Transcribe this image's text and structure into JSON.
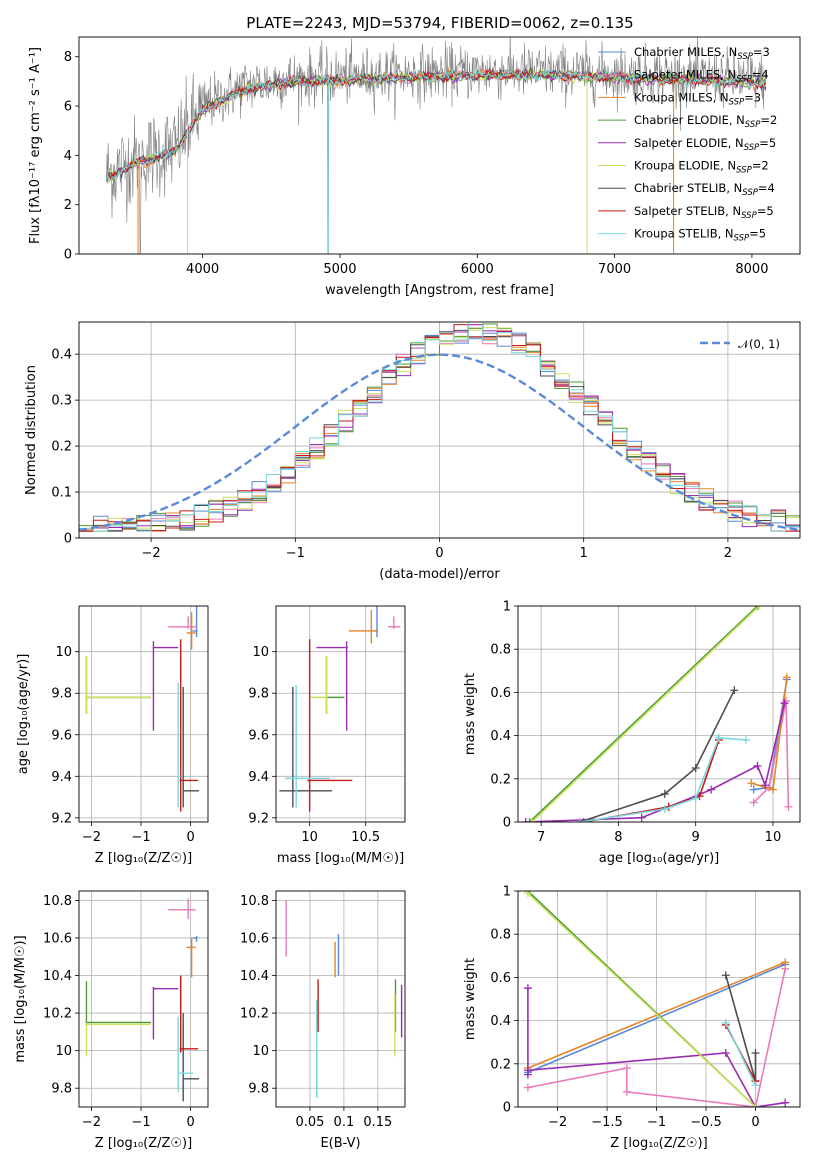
{
  "figure_title": "PLATE=2243, MJD=53794, FIBERID=0062, z=0.135",
  "colors": {
    "Chabrier MILES": "#5b8ad8",
    "Salpeter MILES": "#e87aba",
    "Kroupa MILES": "#e6842a",
    "Chabrier ELODIE": "#4f9a3c",
    "Salpeter ELODIE": "#9a2cb2",
    "Kroupa ELODIE": "#c8e25c",
    "Chabrier STELIB": "#4d4d4d",
    "Salpeter STELIB": "#c41a1a",
    "Kroupa STELIB": "#7ad8de"
  },
  "chart_data": [
    {
      "id": "spectrum",
      "type": "line",
      "title": "PLATE=2243, MJD=53794, FIBERID=0062, z=0.135",
      "xlabel": "wavelength [Angstrom, rest frame]",
      "ylabel": "Flux [fλ10⁻¹⁷ erg cm⁻² s⁻¹ A⁻¹]",
      "xlim": [
        3100,
        8350
      ],
      "ylim": [
        0,
        8.8
      ],
      "xticks": [
        4000,
        5000,
        6000,
        7000,
        8000
      ],
      "yticks": [
        0,
        2,
        4,
        6,
        8
      ],
      "grid": false,
      "legend_position": "top-right",
      "legend": [
        {
          "label": "Chabrier MILES, N",
          "sub": "SSP",
          "tail": "=3",
          "key": "Chabrier MILES"
        },
        {
          "label": "Salpeter MILES, N",
          "sub": "SSP",
          "tail": "=4",
          "key": "Salpeter MILES"
        },
        {
          "label": "Kroupa MILES, N",
          "sub": "SSP",
          "tail": "=3",
          "key": "Kroupa MILES"
        },
        {
          "label": "Chabrier ELODIE, N",
          "sub": "SSP",
          "tail": "=2",
          "key": "Chabrier ELODIE"
        },
        {
          "label": "Salpeter ELODIE, N",
          "sub": "SSP",
          "tail": "=5",
          "key": "Salpeter ELODIE"
        },
        {
          "label": "Kroupa ELODIE, N",
          "sub": "SSP",
          "tail": "=2",
          "key": "Kroupa ELODIE"
        },
        {
          "label": "Chabrier STELIB, N",
          "sub": "SSP",
          "tail": "=4",
          "key": "Chabrier STELIB"
        },
        {
          "label": "Salpeter STELIB, N",
          "sub": "SSP",
          "tail": "=5",
          "key": "Salpeter STELIB"
        },
        {
          "label": "Kroupa STELIB, N",
          "sub": "SSP",
          "tail": "=5",
          "key": "Kroupa STELIB"
        }
      ],
      "data_series": {
        "name": "data",
        "color": "#808080",
        "x_range": [
          3300,
          8100
        ]
      },
      "model_continuum": {
        "x": [
          3300,
          3500,
          3800,
          4000,
          4300,
          4600,
          5000,
          5500,
          6000,
          6500,
          7000,
          7500,
          8000,
          8100
        ],
        "y": [
          3.2,
          3.8,
          4.3,
          6.0,
          6.8,
          7.1,
          7.2,
          7.3,
          7.4,
          7.4,
          7.3,
          7.2,
          7.1,
          7.0
        ]
      }
    },
    {
      "id": "residuals",
      "type": "line",
      "xlabel": "(data-model)/error",
      "ylabel": "Normed distribution",
      "xlim": [
        -2.5,
        2.5
      ],
      "ylim": [
        0,
        0.47
      ],
      "xticks": [
        -2,
        -1,
        0,
        1,
        2
      ],
      "yticks": [
        0.0,
        0.1,
        0.2,
        0.3,
        0.4
      ],
      "grid": true,
      "legend_position": "top-right",
      "reference": {
        "name": "𝒩(0, 1)",
        "mu": 0,
        "sigma": 1,
        "color": "#5b8ad8",
        "dash": true
      },
      "bins": 50,
      "bin_range": [
        -2.5,
        2.5
      ]
    },
    {
      "id": "age_vs_Z",
      "type": "scatter",
      "xlabel": "Z [log₁₀(Z/Z☉)]",
      "ylabel": "age  [log₁₀(age/yr)]",
      "xlim": [
        -2.25,
        0.35
      ],
      "ylim": [
        9.18,
        10.22
      ],
      "xticks": [
        -2,
        -1,
        0
      ],
      "yticks": [
        9.2,
        9.4,
        9.6,
        9.8,
        10.0
      ],
      "grid": true,
      "points": [
        {
          "key": "Chabrier MILES",
          "x": 0.12,
          "y": 10.1,
          "xerr": [
            0.08,
            0.02
          ],
          "yerr": [
            0.03,
            0.12
          ]
        },
        {
          "key": "Salpeter MILES",
          "x": -0.05,
          "y": 10.12,
          "xerr": [
            0.4,
            0.15
          ],
          "yerr": [
            0.01,
            0.05
          ]
        },
        {
          "key": "Kroupa MILES",
          "x": 0.02,
          "y": 10.09,
          "xerr": [
            0.1,
            0.08
          ],
          "yerr": [
            0.08,
            0.1
          ]
        },
        {
          "key": "Chabrier ELODIE",
          "x": -2.1,
          "y": 9.78,
          "xerr": [
            0.02,
            1.3
          ],
          "yerr": [
            0.08,
            0.2
          ]
        },
        {
          "key": "Salpeter ELODIE",
          "x": -0.75,
          "y": 10.02,
          "xerr": [
            0.01,
            0.5
          ],
          "yerr": [
            0.4,
            0.03
          ]
        },
        {
          "key": "Kroupa ELODIE",
          "x": -2.1,
          "y": 9.78,
          "xerr": [
            0.02,
            1.3
          ],
          "yerr": [
            0.08,
            0.2
          ]
        },
        {
          "key": "Chabrier STELIB",
          "x": -0.15,
          "y": 9.33,
          "xerr": [
            0.01,
            0.32
          ],
          "yerr": [
            0.08,
            0.5
          ]
        },
        {
          "key": "Salpeter STELIB",
          "x": -0.2,
          "y": 9.38,
          "xerr": [
            0.02,
            0.35
          ],
          "yerr": [
            0.15,
            0.68
          ]
        },
        {
          "key": "Kroupa STELIB",
          "x": -0.25,
          "y": 9.4,
          "xerr": [
            0.01,
            0.05
          ],
          "yerr": [
            0.15,
            0.45
          ]
        }
      ]
    },
    {
      "id": "age_vs_mass",
      "type": "scatter",
      "xlabel": "mass [log₁₀(M/M☉)]",
      "ylabel": "",
      "xlim": [
        9.7,
        10.85
      ],
      "ylim": [
        9.18,
        10.22
      ],
      "xticks": [
        10.0,
        10.5
      ],
      "yticks": [
        9.2,
        9.4,
        9.6,
        9.8,
        10.0
      ],
      "grid": true,
      "points": [
        {
          "key": "Chabrier MILES",
          "x": 10.6,
          "y": 10.1,
          "xerr": [
            0.02,
            0.01
          ],
          "yerr": [
            0.03,
            0.12
          ]
        },
        {
          "key": "Salpeter MILES",
          "x": 10.75,
          "y": 10.12,
          "xerr": [
            0.05,
            0.06
          ],
          "yerr": [
            0.01,
            0.05
          ]
        },
        {
          "key": "Kroupa MILES",
          "x": 10.55,
          "y": 10.1,
          "xerr": [
            0.2,
            0.05
          ],
          "yerr": [
            0.06,
            0.1
          ]
        },
        {
          "key": "Chabrier ELODIE",
          "x": 10.15,
          "y": 9.78,
          "xerr": [
            0.01,
            0.16
          ],
          "yerr": [
            0.08,
            0.2
          ]
        },
        {
          "key": "Salpeter ELODIE",
          "x": 10.33,
          "y": 10.02,
          "xerr": [
            0.27,
            0.01
          ],
          "yerr": [
            0.4,
            0.03
          ]
        },
        {
          "key": "Kroupa ELODIE",
          "x": 10.15,
          "y": 9.78,
          "xerr": [
            0.15,
            0.01
          ],
          "yerr": [
            0.08,
            0.2
          ]
        },
        {
          "key": "Chabrier STELIB",
          "x": 9.85,
          "y": 9.33,
          "xerr": [
            0.12,
            0.35
          ],
          "yerr": [
            0.08,
            0.5
          ]
        },
        {
          "key": "Salpeter STELIB",
          "x": 10.0,
          "y": 9.38,
          "xerr": [
            0.02,
            0.38
          ],
          "yerr": [
            0.15,
            0.68
          ]
        },
        {
          "key": "Kroupa STELIB",
          "x": 9.88,
          "y": 9.39,
          "xerr": [
            0.1,
            0.3
          ],
          "yerr": [
            0.14,
            0.45
          ]
        }
      ]
    },
    {
      "id": "massweight_vs_age",
      "type": "line",
      "xlabel": "age  [log₁₀(age/yr)]",
      "ylabel": "mass weight",
      "xlim": [
        6.7,
        10.35
      ],
      "ylim": [
        0,
        1.0
      ],
      "xticks": [
        7,
        8,
        9,
        10
      ],
      "yticks": [
        0.0,
        0.2,
        0.4,
        0.6,
        0.8,
        1.0
      ],
      "grid": true,
      "series": [
        {
          "key": "Chabrier MILES",
          "x": [
            9.75,
            9.95,
            10.18
          ],
          "y": [
            0.15,
            0.16,
            0.66
          ]
        },
        {
          "key": "Salpeter MILES",
          "x": [
            9.75,
            9.95,
            10.17,
            10.2
          ],
          "y": [
            0.09,
            0.16,
            0.56,
            0.07
          ]
        },
        {
          "key": "Kroupa MILES",
          "x": [
            9.72,
            10.0,
            10.18
          ],
          "y": [
            0.18,
            0.15,
            0.67
          ]
        },
        {
          "key": "Chabrier ELODIE",
          "x": [
            6.85,
            9.8
          ],
          "y": [
            0.0,
            1.0
          ]
        },
        {
          "key": "Salpeter ELODIE",
          "x": [
            6.8,
            8.3,
            8.65,
            9.2,
            9.8,
            9.9,
            10.15
          ],
          "y": [
            0.0,
            0.02,
            0.07,
            0.15,
            0.26,
            0.17,
            0.55
          ]
        },
        {
          "key": "Kroupa ELODIE",
          "x": [
            6.88,
            9.82
          ],
          "y": [
            0.0,
            1.0
          ]
        },
        {
          "key": "Chabrier STELIB",
          "x": [
            7.5,
            8.6,
            9.0,
            9.5
          ],
          "y": [
            0.0,
            0.13,
            0.25,
            0.61
          ]
        },
        {
          "key": "Salpeter STELIB",
          "x": [
            7.55,
            8.65,
            9.05,
            9.3
          ],
          "y": [
            0.0,
            0.07,
            0.12,
            0.38
          ]
        },
        {
          "key": "Kroupa STELIB",
          "x": [
            7.5,
            8.6,
            9.0,
            9.3,
            9.65
          ],
          "y": [
            0.0,
            0.06,
            0.11,
            0.39,
            0.38
          ]
        }
      ]
    },
    {
      "id": "mass_vs_Z",
      "type": "scatter",
      "xlabel": "Z [log₁₀(Z/Z☉)]",
      "ylabel": "mass [log₁₀(M/M☉)]",
      "xlim": [
        -2.25,
        0.35
      ],
      "ylim": [
        9.7,
        10.85
      ],
      "xticks": [
        -2,
        -1,
        0
      ],
      "yticks": [
        9.8,
        10.0,
        10.2,
        10.4,
        10.6,
        10.8
      ],
      "grid": true,
      "points": [
        {
          "key": "Chabrier MILES",
          "x": 0.12,
          "y": 10.6,
          "xerr": [
            0.08,
            0.02
          ],
          "yerr": [
            0.02,
            0.01
          ]
        },
        {
          "key": "Salpeter MILES",
          "x": -0.05,
          "y": 10.75,
          "xerr": [
            0.4,
            0.15
          ],
          "yerr": [
            0.05,
            0.06
          ]
        },
        {
          "key": "Kroupa MILES",
          "x": 0.02,
          "y": 10.55,
          "xerr": [
            0.1,
            0.08
          ],
          "yerr": [
            0.16,
            0.05
          ]
        },
        {
          "key": "Chabrier ELODIE",
          "x": -2.1,
          "y": 10.15,
          "xerr": [
            0.02,
            1.3
          ],
          "yerr": [
            0.01,
            0.22
          ]
        },
        {
          "key": "Salpeter ELODIE",
          "x": -0.75,
          "y": 10.33,
          "xerr": [
            0.01,
            0.5
          ],
          "yerr": [
            0.27,
            0.01
          ]
        },
        {
          "key": "Kroupa ELODIE",
          "x": -2.1,
          "y": 10.14,
          "xerr": [
            0.02,
            1.3
          ],
          "yerr": [
            0.17,
            0.01
          ]
        },
        {
          "key": "Chabrier STELIB",
          "x": -0.15,
          "y": 9.85,
          "xerr": [
            0.01,
            0.32
          ],
          "yerr": [
            0.12,
            0.35
          ]
        },
        {
          "key": "Salpeter STELIB",
          "x": -0.2,
          "y": 10.01,
          "xerr": [
            0.02,
            0.35
          ],
          "yerr": [
            0.02,
            0.39
          ]
        },
        {
          "key": "Kroupa STELIB",
          "x": -0.25,
          "y": 9.88,
          "xerr": [
            0.01,
            0.3
          ],
          "yerr": [
            0.1,
            0.3
          ]
        }
      ]
    },
    {
      "id": "mass_vs_EBV",
      "type": "scatter",
      "xlabel": "E(B-V)",
      "ylabel": "",
      "xlim": [
        0.0,
        0.19
      ],
      "ylim": [
        9.7,
        10.85
      ],
      "xticks": [
        0.05,
        0.1,
        0.15
      ],
      "yticks": [
        9.8,
        10.0,
        10.2,
        10.4,
        10.6,
        10.8
      ],
      "grid": true,
      "points": [
        {
          "key": "Chabrier MILES",
          "x": 0.092,
          "y": 10.5,
          "yerr": [
            0.1,
            0.12
          ]
        },
        {
          "key": "Salpeter MILES",
          "x": 0.015,
          "y": 10.65,
          "yerr": [
            0.15,
            0.15
          ]
        },
        {
          "key": "Kroupa MILES",
          "x": 0.087,
          "y": 10.48,
          "yerr": [
            0.09,
            0.1
          ]
        },
        {
          "key": "Chabrier ELODIE",
          "x": 0.176,
          "y": 10.2,
          "yerr": [
            0.1,
            0.18
          ]
        },
        {
          "key": "Salpeter ELODIE",
          "x": 0.185,
          "y": 10.2,
          "yerr": [
            0.13,
            0.15
          ]
        },
        {
          "key": "Kroupa ELODIE",
          "x": 0.175,
          "y": 10.15,
          "yerr": [
            0.18,
            0.15
          ]
        },
        {
          "key": "Chabrier STELIB",
          "x": 0.06,
          "y": 9.9,
          "yerr": [
            0.15,
            0.1
          ]
        },
        {
          "key": "Salpeter STELIB",
          "x": 0.062,
          "y": 10.2,
          "yerr": [
            0.1,
            0.18
          ]
        },
        {
          "key": "Kroupa STELIB",
          "x": 0.06,
          "y": 10.0,
          "yerr": [
            0.25,
            0.27
          ]
        }
      ]
    },
    {
      "id": "massweight_vs_Z",
      "type": "line",
      "xlabel": "Z [log₁₀(Z/Z☉)]",
      "ylabel": "mass weight",
      "xlim": [
        -2.4,
        0.45
      ],
      "ylim": [
        0,
        1.0
      ],
      "xticks": [
        -2.0,
        -1.5,
        -1.0,
        -0.5,
        0.0
      ],
      "yticks": [
        0.0,
        0.2,
        0.4,
        0.6,
        0.8,
        1.0
      ],
      "grid": true,
      "series": [
        {
          "key": "Chabrier MILES",
          "x": [
            -2.3,
            0.3
          ],
          "y": [
            0.16,
            0.66
          ]
        },
        {
          "key": "Salpeter MILES",
          "x": [
            -2.3,
            -1.3,
            -1.3,
            0.0,
            0.3
          ],
          "y": [
            0.09,
            0.18,
            0.07,
            0.0,
            0.64
          ]
        },
        {
          "key": "Kroupa MILES",
          "x": [
            -2.3,
            0.3
          ],
          "y": [
            0.18,
            0.67
          ]
        },
        {
          "key": "Chabrier ELODIE",
          "x": [
            -2.3,
            0.0
          ],
          "y": [
            1.0,
            0.0
          ]
        },
        {
          "key": "Salpeter ELODIE",
          "x": [
            -2.3,
            -2.3,
            -2.3,
            -0.3,
            0.0,
            0.3
          ],
          "y": [
            0.55,
            0.15,
            0.17,
            0.25,
            0.0,
            0.02
          ]
        },
        {
          "key": "Kroupa ELODIE",
          "x": [
            -2.3,
            0.0
          ],
          "y": [
            0.99,
            0.0
          ]
        },
        {
          "key": "Chabrier STELIB",
          "x": [
            -0.3,
            0.0,
            0.0
          ],
          "y": [
            0.61,
            0.12,
            0.25
          ]
        },
        {
          "key": "Salpeter STELIB",
          "x": [
            -0.3,
            0.0
          ],
          "y": [
            0.38,
            0.12
          ]
        },
        {
          "key": "Kroupa STELIB",
          "x": [
            -0.3,
            0.0
          ],
          "y": [
            0.39,
            0.1
          ]
        }
      ]
    }
  ]
}
